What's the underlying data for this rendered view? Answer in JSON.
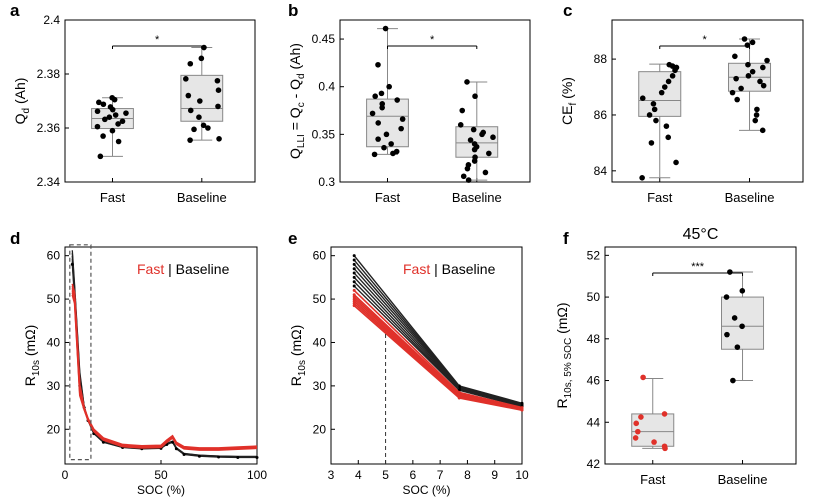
{
  "colors": {
    "fast": "#e0312a",
    "baseline": "#000000",
    "box": "#e6e6e6",
    "boxline": "#888888"
  },
  "chart_data": [
    {
      "id": "a",
      "type": "box",
      "panel_label": "a",
      "ylabel": "Q",
      "ylabel_sub": "d",
      "ylabel_suffix": " (Ah)",
      "ylim": [
        2.34,
        2.4
      ],
      "yticks": [
        2.34,
        2.36,
        2.38,
        2.4
      ],
      "ytick_labels": [
        "2.34",
        "2.36",
        "2.38",
        "2.4"
      ],
      "categories": [
        "Fast",
        "Baseline"
      ],
      "significance": "*",
      "boxes": [
        {
          "q1": 2.3598,
          "median": 2.3635,
          "q3": 2.3672,
          "whislo": 2.3495,
          "whishi": 2.3712
        },
        {
          "q1": 2.3625,
          "median": 2.3672,
          "q3": 2.3795,
          "whislo": 2.3555,
          "whishi": 2.3898
        }
      ],
      "points": [
        [
          2.3712,
          2.3705,
          2.3695,
          2.3688,
          2.3678,
          2.3668,
          2.3662,
          2.3655,
          2.3648,
          2.364,
          2.3632,
          2.3625,
          2.3615,
          2.3605,
          2.359,
          2.357,
          2.355,
          2.3495
        ],
        [
          2.3898,
          2.3858,
          2.3838,
          2.3782,
          2.3775,
          2.374,
          2.372,
          2.37,
          2.368,
          2.3665,
          2.364,
          2.361,
          2.36,
          2.3595,
          2.3555,
          2.356
        ]
      ]
    },
    {
      "id": "b",
      "type": "box",
      "panel_label": "b",
      "ylabel": "Q",
      "ylabel_sub": "LLI",
      "ylabel_suffix": " = Q",
      "ylabel_full": "Q_LLI = Q_c - Q_d (Ah)",
      "ylim": [
        0.3,
        0.47
      ],
      "yticks": [
        0.3,
        0.35,
        0.4,
        0.45
      ],
      "ytick_labels": [
        "0.3",
        "0.35",
        "0.4",
        "0.45"
      ],
      "categories": [
        "Fast",
        "Baseline"
      ],
      "significance": "*",
      "boxes": [
        {
          "q1": 0.337,
          "median": 0.369,
          "q3": 0.387,
          "whislo": 0.329,
          "whishi": 0.461
        },
        {
          "q1": 0.326,
          "median": 0.341,
          "q3": 0.358,
          "whislo": 0.302,
          "whishi": 0.405
        }
      ],
      "points": [
        [
          0.461,
          0.423,
          0.4,
          0.393,
          0.39,
          0.386,
          0.382,
          0.378,
          0.372,
          0.366,
          0.362,
          0.356,
          0.35,
          0.345,
          0.34,
          0.336,
          0.332,
          0.33,
          0.329
        ],
        [
          0.405,
          0.39,
          0.375,
          0.36,
          0.355,
          0.352,
          0.35,
          0.347,
          0.344,
          0.34,
          0.337,
          0.334,
          0.33,
          0.326,
          0.322,
          0.318,
          0.314,
          0.31,
          0.306,
          0.302
        ]
      ]
    },
    {
      "id": "c",
      "type": "box",
      "panel_label": "c",
      "ylabel": "CE",
      "ylabel_sub": "f",
      "ylabel_suffix": " (%)",
      "ylim": [
        83.6,
        89.4
      ],
      "yticks": [
        84,
        86,
        88
      ],
      "ytick_labels": [
        "84",
        "86",
        "88"
      ],
      "categories": [
        "Fast",
        "Baseline"
      ],
      "significance": "*",
      "boxes": [
        {
          "q1": 85.95,
          "median": 86.52,
          "q3": 87.55,
          "whislo": 83.75,
          "whishi": 87.82
        },
        {
          "q1": 86.85,
          "median": 87.35,
          "q3": 87.85,
          "whislo": 85.45,
          "whishi": 88.72
        },
        {
          "skip": true
        }
      ],
      "points": [
        [
          87.8,
          87.75,
          87.7,
          87.6,
          87.4,
          87.2,
          87.0,
          86.8,
          86.6,
          86.4,
          86.2,
          86.0,
          85.8,
          85.6,
          85.2,
          85.0,
          84.3,
          83.75
        ],
        [
          88.72,
          88.6,
          88.5,
          88.1,
          87.95,
          87.8,
          87.7,
          87.55,
          87.4,
          87.3,
          87.2,
          87.05,
          86.95,
          86.8,
          86.55,
          86.2,
          86.0,
          85.8,
          85.45
        ]
      ]
    },
    {
      "id": "d",
      "type": "line",
      "panel_label": "d",
      "ylabel": "R",
      "ylabel_sub": "10s",
      "ylabel_suffix": " (mΩ)",
      "xlabel": "SOC (%)",
      "xlim": [
        0,
        100
      ],
      "ylim": [
        12,
        62
      ],
      "xticks": [
        0,
        50,
        100
      ],
      "yticks": [
        20,
        30,
        40,
        50,
        60
      ],
      "legend": {
        "fast": "Fast",
        "sep": " | ",
        "baseline": "Baseline"
      },
      "baseline_curve": {
        "x": [
          3.8,
          5,
          7.7,
          10,
          12,
          15,
          20,
          30,
          40,
          50,
          53,
          56,
          58,
          62,
          70,
          80,
          90,
          100
        ],
        "y": [
          58,
          50,
          30,
          25,
          22,
          19,
          17,
          15.8,
          15.5,
          15.6,
          16.5,
          17,
          15.5,
          14.2,
          13.8,
          13.6,
          13.5,
          13.5
        ]
      },
      "fast_curve": {
        "x": [
          3.8,
          5,
          7.7,
          10,
          12,
          15,
          20,
          30,
          40,
          50,
          53,
          56,
          58,
          62,
          70,
          80,
          90,
          100
        ],
        "y": [
          51,
          49,
          27.8,
          24.5,
          22,
          19.5,
          17.5,
          16,
          15.7,
          15.8,
          17,
          18,
          16.5,
          15.5,
          15.2,
          15.2,
          15.4,
          15.6
        ]
      },
      "box_region": {
        "x0": 2.5,
        "x1": 13.5,
        "y0": 13,
        "y1": 62.5
      }
    },
    {
      "id": "e",
      "type": "line",
      "panel_label": "e",
      "ylabel": "R",
      "ylabel_sub": "10s",
      "ylabel_suffix": " (mΩ)",
      "xlabel": "SOC (%)",
      "xlim": [
        3,
        10
      ],
      "ylim": [
        12,
        62
      ],
      "xticks": [
        3,
        4,
        5,
        6,
        7,
        8,
        9,
        10
      ],
      "yticks": [
        20,
        30,
        40,
        50,
        60
      ],
      "legend": {
        "fast": "Fast",
        "sep": " | ",
        "baseline": "Baseline"
      },
      "x": [
        3.85,
        7.7,
        10
      ],
      "baseline_series": [
        [
          60,
          30,
          26
        ],
        [
          59,
          29.9,
          25.8
        ],
        [
          58,
          29.8,
          25.7
        ],
        [
          57,
          29.7,
          25.6
        ],
        [
          56,
          29.5,
          25.5
        ],
        [
          55,
          29.3,
          25.4
        ],
        [
          54,
          29.1,
          25.3
        ],
        [
          53,
          29.0,
          25.2
        ]
      ],
      "fast_series": [
        [
          52,
          28.5,
          25.0
        ],
        [
          51,
          28.2,
          24.9
        ],
        [
          50.5,
          28.0,
          24.8
        ],
        [
          50,
          27.8,
          24.7
        ],
        [
          49.5,
          27.6,
          24.6
        ],
        [
          49,
          27.4,
          24.5
        ],
        [
          48.5,
          27.2,
          24.4
        ]
      ],
      "vline_x": 5
    },
    {
      "id": "f",
      "type": "box",
      "panel_label": "f",
      "title": "45°C",
      "ylabel": "R",
      "ylabel_sub": "10s, 5% SOC",
      "ylabel_suffix": " (mΩ)",
      "ylim": [
        42,
        52.4
      ],
      "yticks": [
        42,
        44,
        46,
        48,
        50,
        52
      ],
      "ytick_labels": [
        "42",
        "44",
        "46",
        "48",
        "50",
        "52"
      ],
      "categories": [
        "Fast",
        "Baseline"
      ],
      "significance": "***",
      "boxes": [
        {
          "q1": 42.85,
          "median": 43.55,
          "q3": 44.4,
          "whislo": 42.75,
          "whishi": 46.1
        },
        {
          "q1": 47.5,
          "median": 48.6,
          "q3": 50.0,
          "whislo": 46.0,
          "whishi": 51.2
        }
      ],
      "points": [
        [
          46.15,
          44.4,
          44.25,
          43.95,
          43.55,
          43.25,
          43.05,
          42.85,
          42.75
        ],
        [
          51.2,
          50.3,
          50.0,
          49.0,
          48.6,
          48.2,
          47.6,
          46.0
        ]
      ]
    }
  ]
}
